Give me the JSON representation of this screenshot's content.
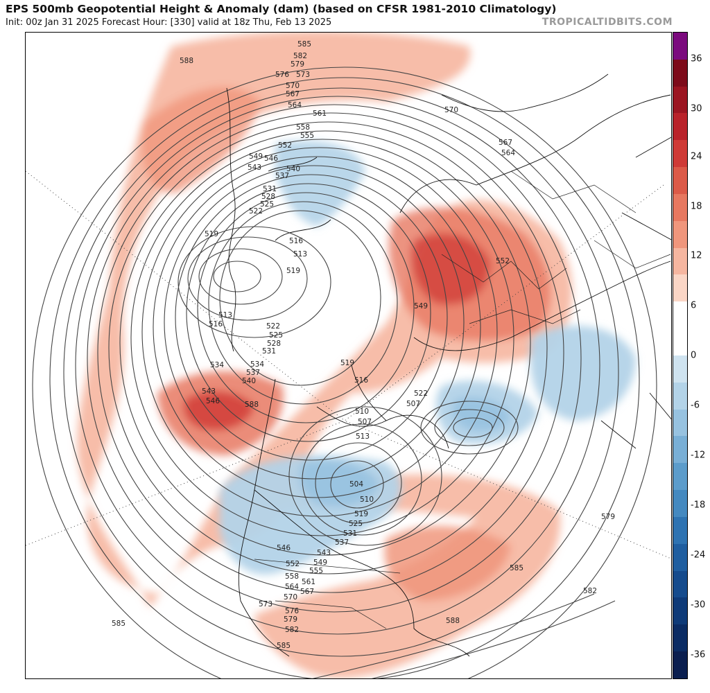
{
  "header": {
    "title": "EPS 500mb Geopotential Height & Anomaly (dam) (based on CFSR 1981-2010 Climatology)",
    "subtitle": "Init: 00z Jan 31 2025   Forecast Hour: [330]   valid at 18z Thu, Feb 13 2025",
    "brand": "TROPICALTIDBITS.COM"
  },
  "colorbar": {
    "labels": [
      "36",
      "30",
      "24",
      "18",
      "12",
      "6",
      "0",
      "-6",
      "-12",
      "-18",
      "-24",
      "-30",
      "-36"
    ],
    "colors": [
      "#7b0a7e",
      "#7d0b1a",
      "#9b1521",
      "#b9222a",
      "#cf3a36",
      "#dc5a48",
      "#e77860",
      "#f0967c",
      "#f6b6a0",
      "#fbd6c6",
      "#ffffff",
      "#ffffff",
      "#cfe3f0",
      "#b3d3e8",
      "#97c2e0",
      "#79afd6",
      "#5c9ccb",
      "#4489c0",
      "#2e73b2",
      "#1f5ea0",
      "#154b8d",
      "#0e3a78",
      "#0a2b63",
      "#0a1e4f"
    ]
  },
  "contour_labels": [
    "585",
    "582",
    "579",
    "576",
    "573",
    "570",
    "567",
    "564",
    "561",
    "558",
    "555",
    "552",
    "549",
    "546",
    "543",
    "540",
    "537",
    "531",
    "528",
    "525",
    "522",
    "519",
    "516",
    "513",
    "510",
    "507",
    "504",
    "534",
    "588",
    "570",
    "567",
    "564",
    "552",
    "579",
    "585",
    "582",
    "588",
    "585",
    "573",
    "576",
    "579",
    "582",
    "585",
    "546",
    "549",
    "552",
    "555",
    "558",
    "561",
    "564",
    "567",
    "570",
    "543",
    "537",
    "531",
    "525",
    "519",
    "513",
    "516",
    "519",
    "522",
    "510",
    "507",
    "513",
    "516",
    "519",
    "522",
    "525",
    "528",
    "531",
    "534",
    "537",
    "540",
    "543",
    "546",
    "549",
    "588"
  ]
}
